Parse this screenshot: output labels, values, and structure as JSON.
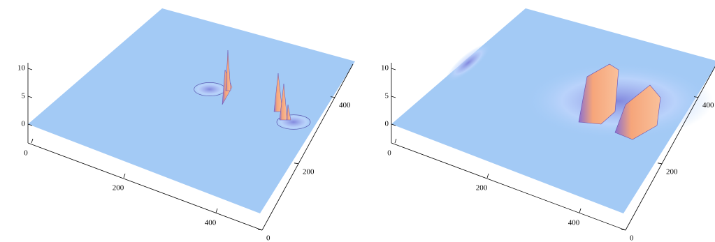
{
  "chart_data": [
    {
      "type": "surface",
      "xlim": [
        0,
        500
      ],
      "ylim": [
        0,
        500
      ],
      "zlim": [
        0,
        10
      ],
      "xticks": [
        0,
        200,
        400
      ],
      "yticks": [
        0,
        200,
        400
      ],
      "zticks": [
        0,
        5,
        10
      ]
    },
    {
      "type": "surface",
      "xlim": [
        0,
        500
      ],
      "ylim": [
        0,
        500
      ],
      "zlim": [
        0,
        10
      ],
      "xticks": [
        0,
        200,
        400
      ],
      "yticks": [
        0,
        200,
        400
      ],
      "zticks": [
        0,
        5,
        10
      ]
    }
  ]
}
